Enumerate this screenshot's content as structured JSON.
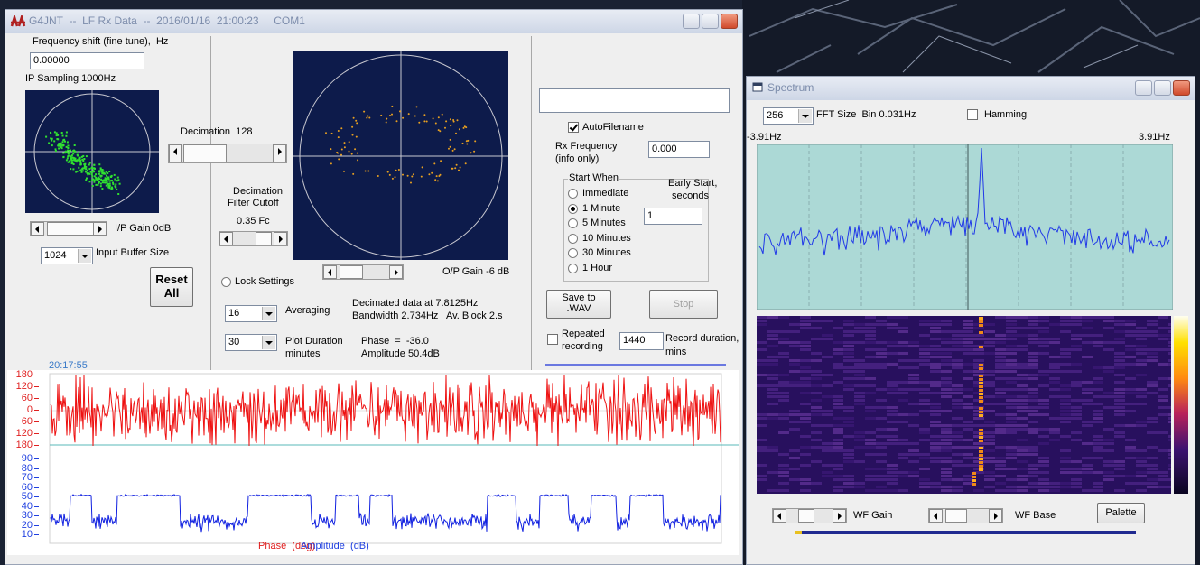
{
  "main_window": {
    "title": "G4JNT  --  LF Rx Data  --  2016/01/16  21:00:23     COM1",
    "freq_shift_label": "Frequency shift (fine tune),  Hz",
    "freq_shift_value": "0.00000",
    "ip_sampling": "IP Sampling 1000Hz",
    "decimation": "Decimation  128",
    "filter_cutoff": [
      "Decimation",
      "Filter Cutoff"
    ],
    "cutoff_value": "0.35 Fc",
    "ip_gain": "I/P Gain 0dB",
    "buffer_size": "1024",
    "buffer_size_label": "Input Buffer Size",
    "reset": [
      "Reset",
      "All"
    ],
    "lock_settings": "Lock Settings",
    "op_gain": "O/P Gain -6 dB",
    "averaging_value": "16",
    "averaging_label": "Averaging",
    "plot_duration_value": "30",
    "plot_duration_label": [
      "Plot Duration",
      "minutes"
    ],
    "info": [
      "Decimated data at 7.8125Hz",
      "Bandwidth 2.734Hz   Av. Block 2.s"
    ],
    "readout": [
      "Phase  =  -36.0",
      "Amplitude 50.4dB"
    ],
    "auto_filename": "AutoFilename",
    "rx_frequency_label": [
      "Rx Frequency",
      "(info only)"
    ],
    "rx_frequency_value": "0.000",
    "start_when": "Start When",
    "early_start_label": [
      "Early Start,",
      "seconds"
    ],
    "early_start_value": "1",
    "start_options": [
      "Immediate",
      "1 Minute",
      "5 Minutes",
      "10 Minutes",
      "30 Minutes",
      "1 Hour"
    ],
    "selected_start": 1,
    "save_button": [
      "Save to",
      ".WAV"
    ],
    "stop_button": "Stop",
    "repeated_recording": [
      "Repeated",
      "recording"
    ],
    "record_duration_value": "1440",
    "record_duration_label": [
      "Record duration,",
      "mins"
    ],
    "plot": {
      "start_time": "20:17:55",
      "phase_ticks": [
        180,
        120,
        60,
        0,
        60,
        120,
        180
      ],
      "amplitude_ticks": [
        90,
        80,
        70,
        60,
        50,
        40,
        30,
        20,
        10
      ],
      "legend": [
        "Phase  (deg)",
        "Amplitude  (dB)"
      ]
    }
  },
  "spectrum_window": {
    "title": "Spectrum",
    "fft_size": "256",
    "fft_label": "FFT Size  Bin 0.031Hz",
    "hamming": "Hamming",
    "freq_min": "-3.91Hz",
    "freq_max": "3.91Hz",
    "wf_gain": "WF Gain",
    "wf_base": "WF Base",
    "palette": "Palette"
  }
}
